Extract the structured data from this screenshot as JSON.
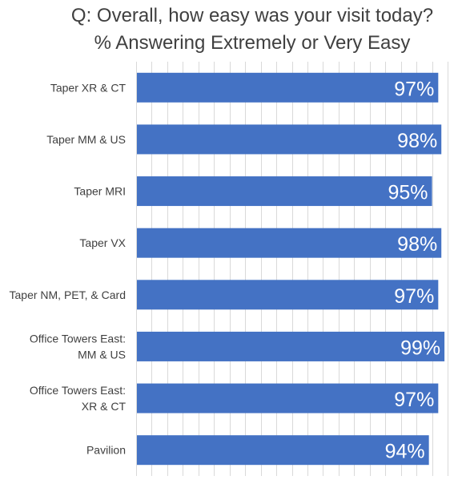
{
  "chart_data": {
    "type": "bar",
    "orientation": "horizontal",
    "title": [
      "Q: Overall, how easy was your visit today?",
      "% Answering Extremely or Very Easy"
    ],
    "categories": [
      [
        "Taper XR & CT"
      ],
      [
        "Taper MM & US"
      ],
      [
        "Taper MRI"
      ],
      [
        "Taper VX"
      ],
      [
        "Taper NM, PET, & Card"
      ],
      [
        "Office Towers East:",
        "MM & US"
      ],
      [
        "Office Towers East:",
        "XR & CT"
      ],
      [
        "Pavilion"
      ]
    ],
    "values": [
      97,
      98,
      95,
      98,
      97,
      99,
      97,
      94
    ],
    "data_labels": [
      "97%",
      "98%",
      "95%",
      "98%",
      "97%",
      "99%",
      "97%",
      "94%"
    ],
    "xlim": [
      0,
      100
    ],
    "grid": "vertical",
    "bar_color": "#4472C4",
    "label_color": "#ffffff",
    "gridline_color": "#d9d9d9"
  }
}
